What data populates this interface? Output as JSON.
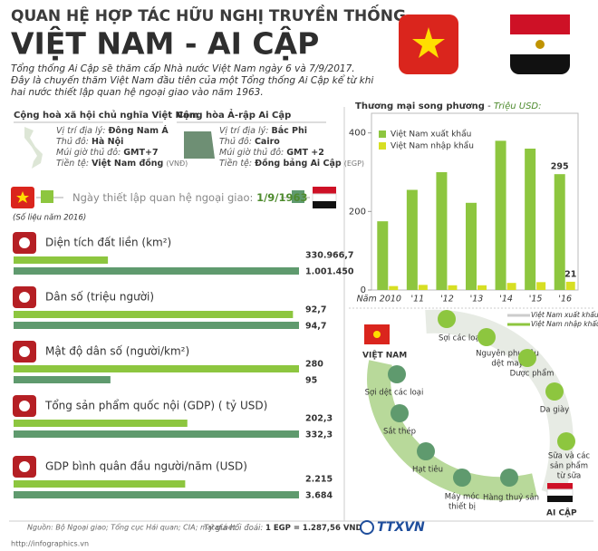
{
  "header": {
    "title_line1": "QUAN HỆ HỢP TÁC HỮU NGHỊ TRUYỀN THỐNG",
    "title_line2": "VIỆT NAM - AI CẬP",
    "intro": [
      "Tổng thống Ai Cập sẽ thăm cấp Nhà nước Việt Nam ngày 6 và 7/9/2017.",
      "Đây là chuyến thăm Việt Nam đầu tiên của một Tổng thống Ai Cập kể từ khi",
      "hai nước thiết lập quan hệ ngoại giao vào năm 1963."
    ]
  },
  "countries": [
    {
      "name": "Cộng hoà xã hội chủ nghĩa Việt Nam",
      "facts": [
        {
          "label": "Vị trí địa lý:",
          "value": "Đông Nam Á"
        },
        {
          "label": "Thủ đô:",
          "value": "Hà Nội"
        },
        {
          "label": "Múi giờ thủ đô:",
          "value": "GMT+7"
        },
        {
          "label": "Tiền tệ:",
          "value": "Việt Nam đồng",
          "note": "(VNĐ)"
        }
      ]
    },
    {
      "name": "Cộng hòa Ả-rập Ai Cập",
      "facts": [
        {
          "label": "Vị trí địa lý:",
          "value": "Bắc Phi"
        },
        {
          "label": "Thủ đô:",
          "value": "Cairo"
        },
        {
          "label": "Múi giờ thủ đô:",
          "value": "GMT +2"
        },
        {
          "label": "Tiền tệ:",
          "value": "Đồng bảng Ai Cập",
          "note": "(EGP)"
        }
      ]
    }
  ],
  "relations": {
    "label": "Ngày thiết lập quan hệ ngoại giao:",
    "date": "1/9/1963"
  },
  "data_note": "(Số liệu năm 2016)",
  "chart_data": [
    {
      "type": "bar",
      "title": "Thương mại song phương",
      "subtitle": "Triệu USD:",
      "categories": [
        "Năm 2010",
        "'11",
        "'12",
        "'13",
        "'14",
        "'15",
        "'16"
      ],
      "series": [
        {
          "name": "Việt Nam xuất khẩu",
          "color": "#8dc63f",
          "values": [
            175,
            255,
            300,
            222,
            380,
            360,
            295
          ],
          "value_labels": [
            null,
            null,
            null,
            null,
            null,
            null,
            "295"
          ]
        },
        {
          "name": "Việt Nam nhập khẩu",
          "color": "#d7df23",
          "values": [
            10,
            13,
            12,
            12,
            18,
            20,
            21
          ],
          "value_labels": [
            null,
            null,
            null,
            null,
            null,
            null,
            "21"
          ]
        }
      ],
      "ylim": [
        0,
        450
      ],
      "yticks": [
        0,
        200,
        400
      ],
      "legend": "top-left"
    },
    {
      "type": "hbar",
      "title": "Diện tích đất liền (km²)",
      "values": [
        330966.7,
        1001450
      ],
      "value_labels": [
        "330.966,7",
        "1.001.450"
      ],
      "colors": [
        "#8dc63f",
        "#5f9a6e"
      ]
    },
    {
      "type": "hbar",
      "title": "Dân số (triệu người)",
      "values": [
        92.7,
        94.7
      ],
      "value_labels": [
        "92,7",
        "94,7"
      ],
      "colors": [
        "#8dc63f",
        "#5f9a6e"
      ]
    },
    {
      "type": "hbar",
      "title": "Mật độ dân số (người/km²)",
      "values": [
        280,
        95
      ],
      "value_labels": [
        "280",
        "95"
      ],
      "colors": [
        "#8dc63f",
        "#5f9a6e"
      ]
    },
    {
      "type": "hbar",
      "title": "Tổng sản phẩm quốc nội (GDP) ( tỷ USD)",
      "values": [
        202.3,
        332.3
      ],
      "value_labels": [
        "202,3",
        "332,3"
      ],
      "colors": [
        "#8dc63f",
        "#5f9a6e"
      ]
    },
    {
      "type": "hbar",
      "title": "GDP bình quân đầu người/năm (USD)",
      "values": [
        2215,
        3684
      ],
      "value_labels": [
        "2.215",
        "3.684"
      ],
      "colors": [
        "#8dc63f",
        "#5f9a6e"
      ]
    }
  ],
  "diagram": {
    "legend": [
      "Việt Nam xuất khẩu",
      "Việt Nam nhập khẩu"
    ],
    "origin": "VIỆT NAM",
    "destination": "AI CẬP",
    "outer_items": [
      {
        "label": [
          "Sợi các loại"
        ]
      },
      {
        "label": [
          "Nguyên phụ liệu",
          "dệt may"
        ]
      },
      {
        "label": [
          "Dược phẩm"
        ]
      },
      {
        "label": [
          "Da giày"
        ]
      },
      {
        "label": [
          "Sữa và các",
          "sản phẩm",
          "từ sữa"
        ]
      }
    ],
    "inner_items": [
      {
        "label": [
          "Sợi dệt các loại"
        ]
      },
      {
        "label": [
          "Sắt thép"
        ]
      },
      {
        "label": [
          "Hạt tiêu"
        ]
      },
      {
        "label": [
          "Máy móc",
          "thiết bị"
        ]
      },
      {
        "label": [
          "Hàng thuỷ sản"
        ]
      }
    ]
  },
  "footer": {
    "sources": "Nguồn: Bộ Ngoại giao; Tổng cục Hải quan; CIA; mataf.net",
    "rate_label": "Tỷ giá hối đoái:",
    "rate": "1 EGP = 1.287,56 VND",
    "url": "http://infographics.vn",
    "logo": "TTXVN"
  }
}
